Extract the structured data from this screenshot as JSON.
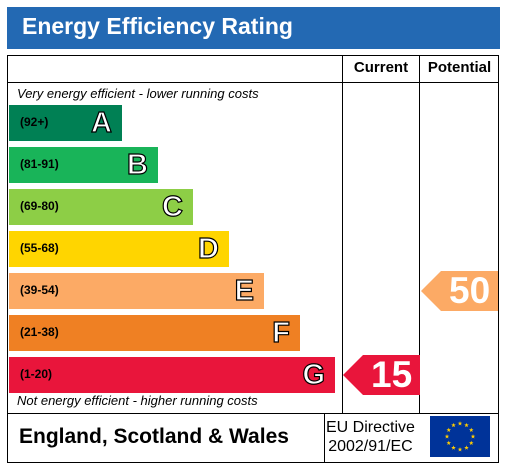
{
  "title": "Energy Efficiency Rating",
  "columns": {
    "current": "Current",
    "potential": "Potential"
  },
  "notes": {
    "top": "Very energy efficient - lower running costs",
    "bottom": "Not energy efficient - higher running costs"
  },
  "bands": [
    {
      "range": "(92+)",
      "letter": "A",
      "color": "#008054"
    },
    {
      "range": "(81-91)",
      "letter": "B",
      "color": "#19b459"
    },
    {
      "range": "(69-80)",
      "letter": "C",
      "color": "#8dce46"
    },
    {
      "range": "(55-68)",
      "letter": "D",
      "color": "#ffd500"
    },
    {
      "range": "(39-54)",
      "letter": "E",
      "color": "#fcaa65"
    },
    {
      "range": "(21-38)",
      "letter": "F",
      "color": "#ef8023"
    },
    {
      "range": "(1-20)",
      "letter": "G",
      "color": "#e9153b"
    }
  ],
  "ratings": {
    "current": {
      "value": "15",
      "band": "G",
      "color": "#e9153b"
    },
    "potential": {
      "value": "50",
      "band": "E",
      "color": "#fcaa65"
    }
  },
  "footer": {
    "country": "England, Scotland & Wales",
    "directive_line1": "EU Directive",
    "directive_line2": "2002/91/EC",
    "flag_icon": "eu-flag-icon"
  }
}
